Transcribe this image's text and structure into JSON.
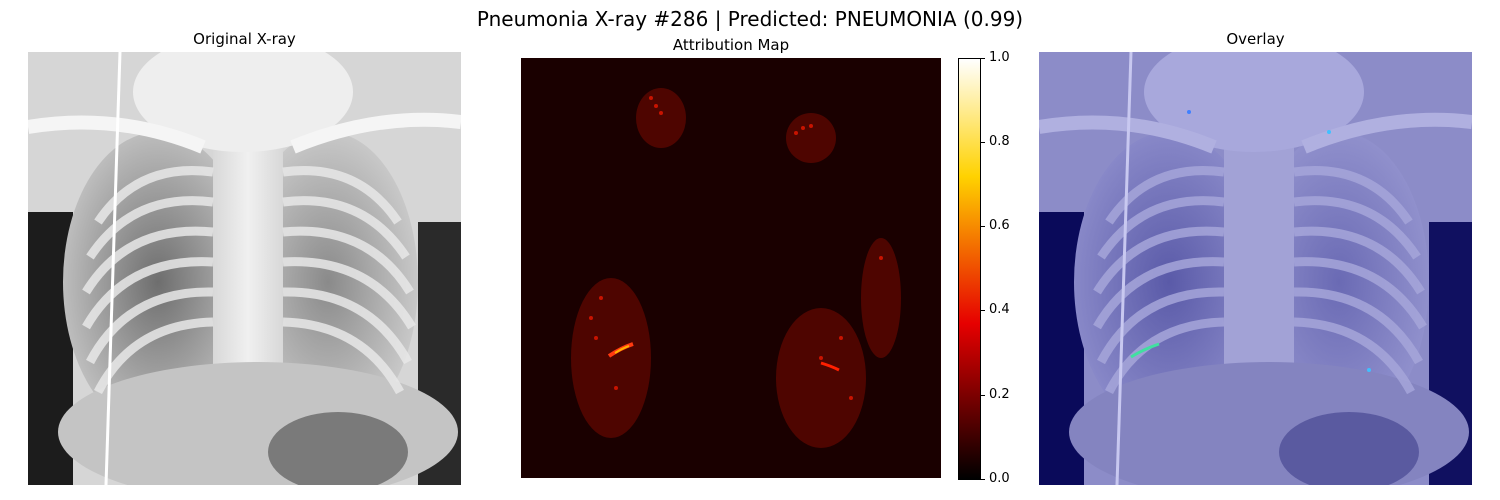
{
  "figure": {
    "title": "Pneumonia X-ray #286 | Predicted: PNEUMONIA (0.99)"
  },
  "panels": [
    {
      "title": "Original X-ray"
    },
    {
      "title": "Attribution Map"
    },
    {
      "title": "Overlay"
    }
  ],
  "colorbar": {
    "colormap": "hot",
    "range": [
      0.0,
      1.0
    ],
    "ticks": [
      "1.0",
      "0.8",
      "0.6",
      "0.4",
      "0.2",
      "0.0"
    ]
  },
  "colors": {
    "background": "#ffffff",
    "overlay_tint": "#0a0a5a"
  }
}
